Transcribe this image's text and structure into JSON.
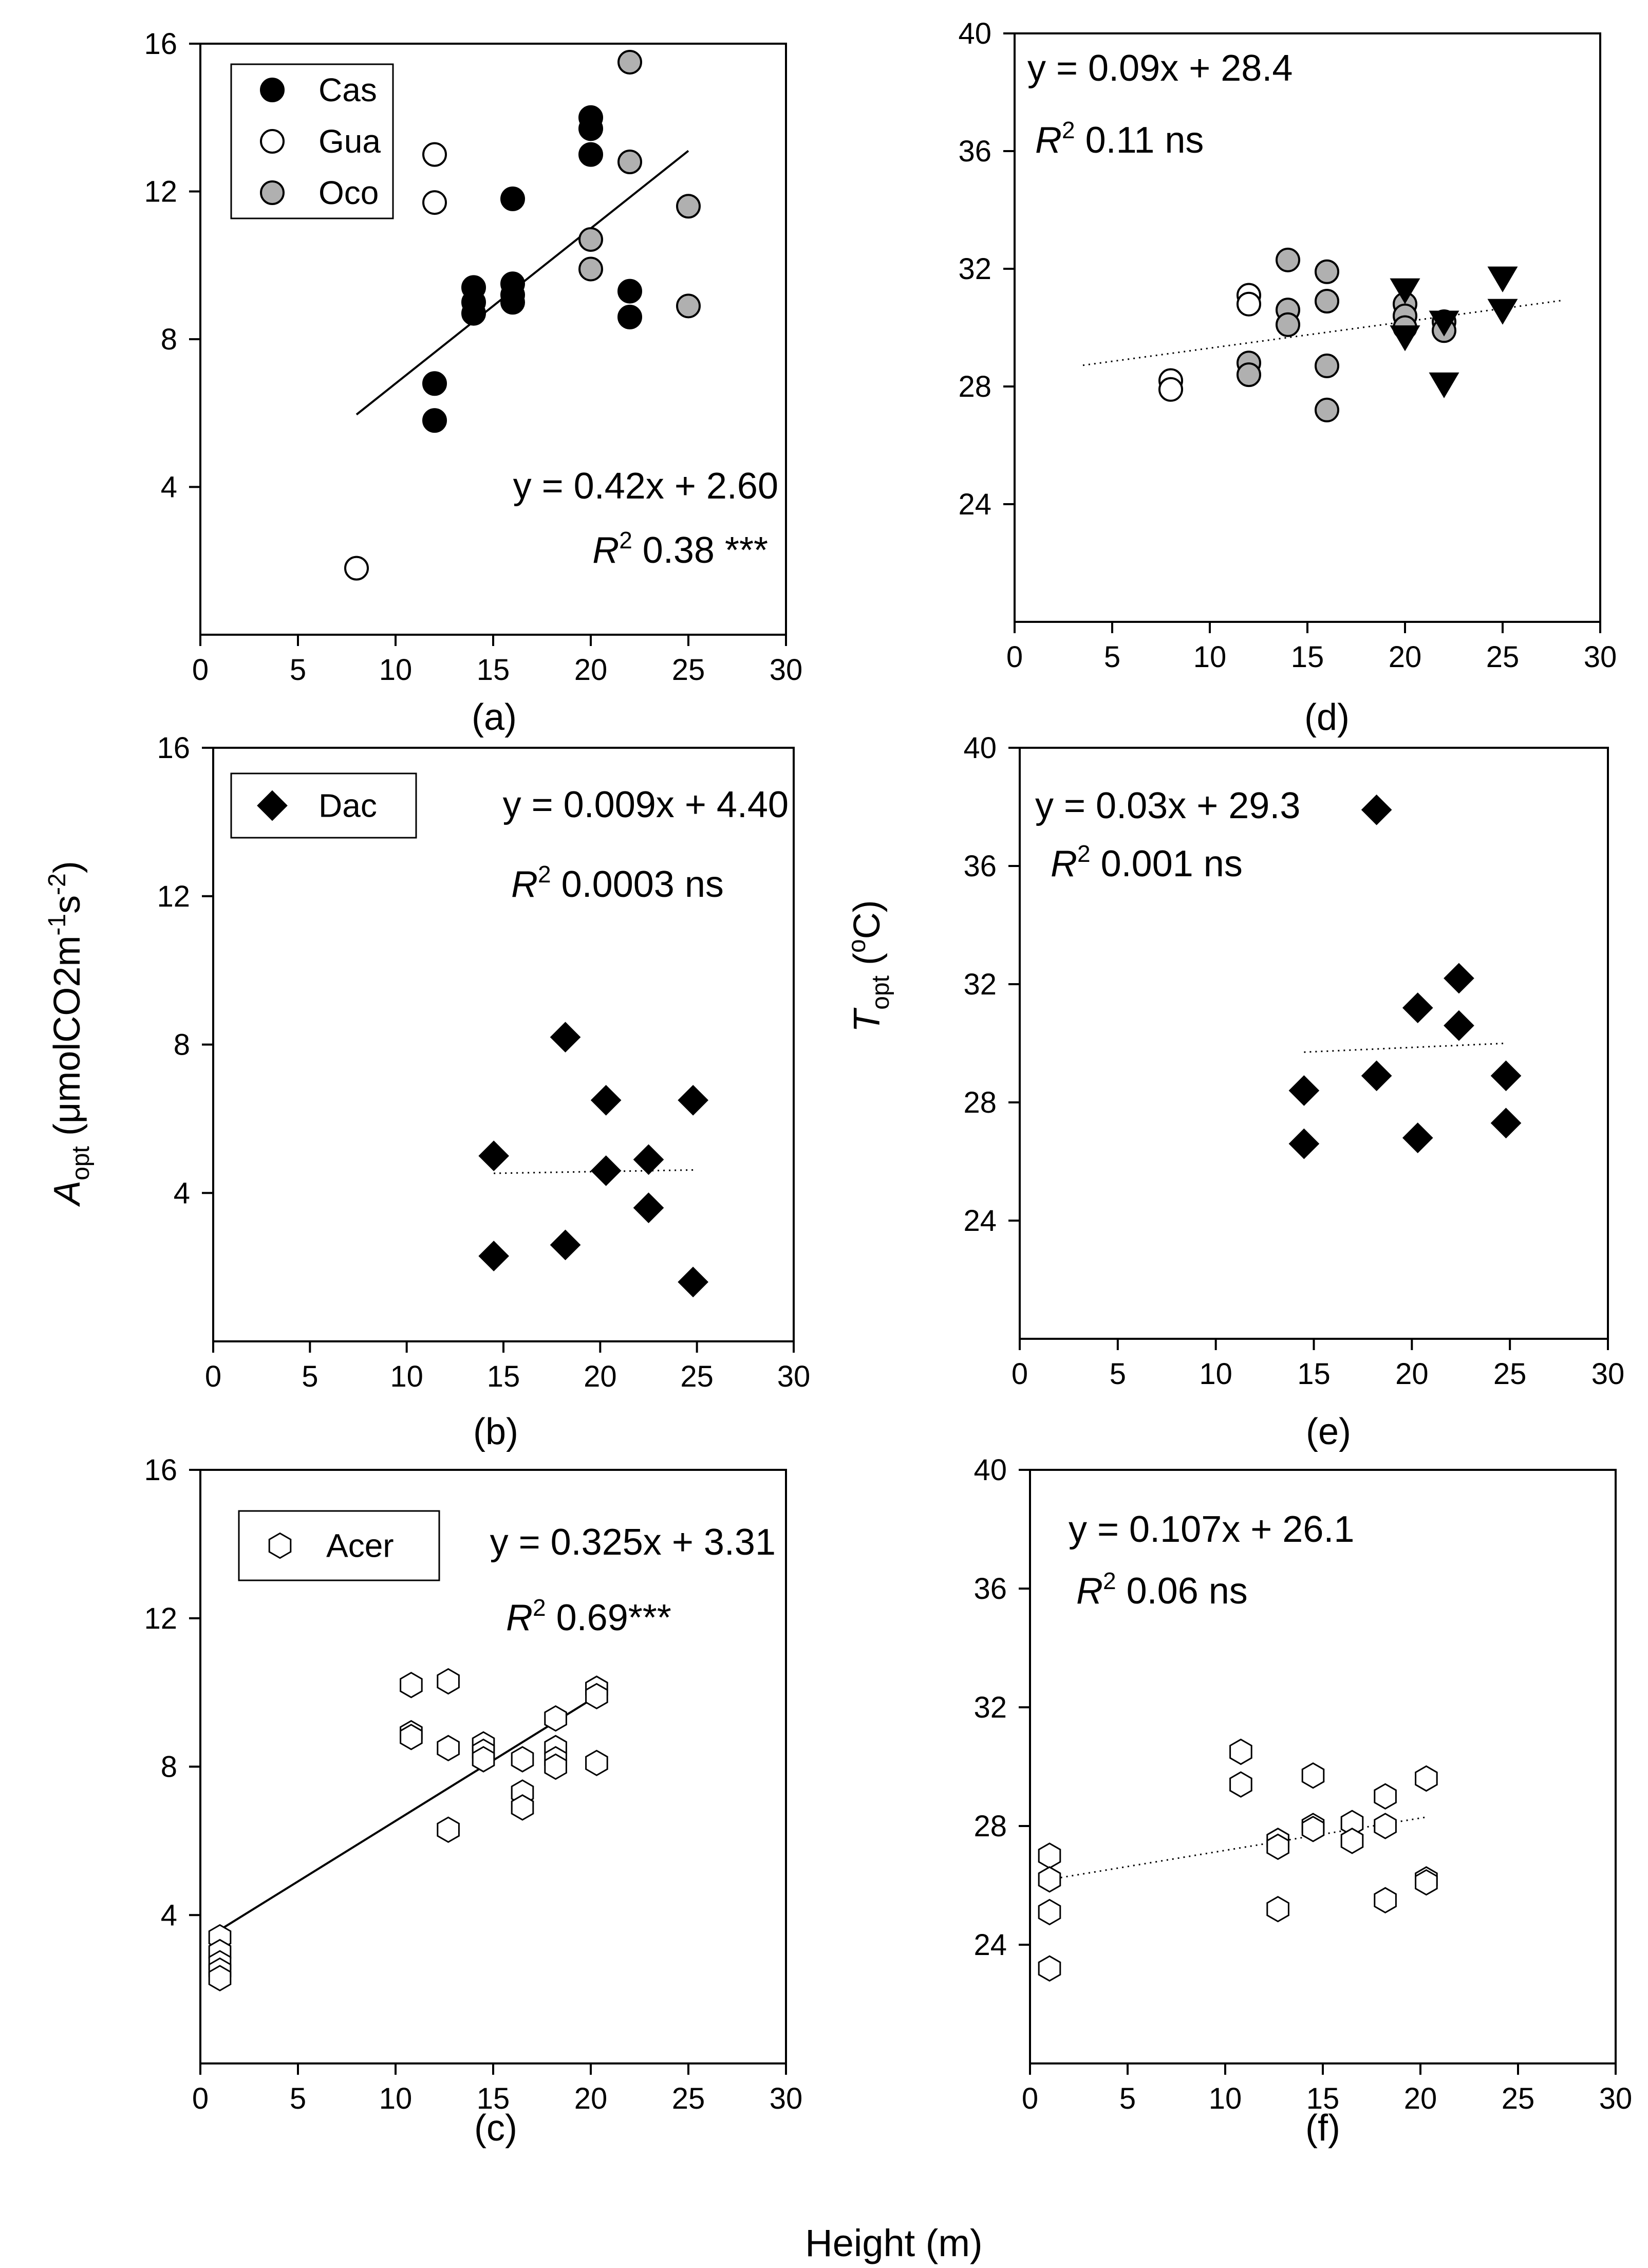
{
  "figure": {
    "xlabel": "Height (m)",
    "ylabel_left": "A",
    "ylabel_left_sub": "opt",
    "ylabel_left_units": " (μmolCO2m",
    "ylabel_left_sup1": "-1",
    "ylabel_left_mid": "s",
    "ylabel_left_sup2": "-2",
    "ylabel_left_close": ")",
    "ylabel_right": "T",
    "ylabel_right_sub": "opt",
    "ylabel_right_units1": " (",
    "ylabel_right_sup": "o",
    "ylabel_right_units2": "C)"
  },
  "chart_data": [
    {
      "id": "a",
      "type": "scatter",
      "caption": "(a)",
      "xlim": [
        0,
        30
      ],
      "ylim": [
        0,
        16
      ],
      "xticks": [
        0,
        5,
        10,
        15,
        20,
        25,
        30
      ],
      "yticks": [
        4,
        8,
        12,
        16
      ],
      "equation": "y = 0.42x + 2.60",
      "r2_label": "R",
      "r2_sup": "2",
      "r2_value": " 0.38 ***",
      "legend": [
        {
          "label": "Cas",
          "marker": "circle",
          "fill": "#000000"
        },
        {
          "label": "Gua",
          "marker": "circle",
          "fill": "#ffffff"
        },
        {
          "label": "Oco",
          "marker": "circle",
          "fill": "#b0b0b0"
        }
      ],
      "fit": {
        "style": "solid",
        "x": [
          8,
          25
        ],
        "y": [
          5.96,
          13.1
        ]
      },
      "series": [
        {
          "name": "Cas",
          "marker": "circle",
          "fill": "#000000",
          "points": [
            [
              12,
              6.8
            ],
            [
              12,
              5.8
            ],
            [
              14,
              9.4
            ],
            [
              14,
              9.0
            ],
            [
              14,
              8.7
            ],
            [
              16,
              11.8
            ],
            [
              16,
              9.5
            ],
            [
              16,
              9.2
            ],
            [
              16,
              9.0
            ],
            [
              20,
              14.0
            ],
            [
              20,
              13.7
            ],
            [
              20,
              13.0
            ],
            [
              22,
              9.3
            ],
            [
              22,
              8.6
            ]
          ]
        },
        {
          "name": "Gua",
          "marker": "circle",
          "fill": "#ffffff",
          "points": [
            [
              8,
              1.8
            ],
            [
              12,
              13.0
            ],
            [
              12,
              11.7
            ]
          ]
        },
        {
          "name": "Oco",
          "marker": "circle",
          "fill": "#b0b0b0",
          "points": [
            [
              20,
              10.7
            ],
            [
              20,
              9.9
            ],
            [
              22,
              15.5
            ],
            [
              22,
              12.8
            ],
            [
              25,
              11.6
            ],
            [
              25,
              8.9
            ]
          ]
        }
      ]
    },
    {
      "id": "b",
      "type": "scatter",
      "caption": "(b)",
      "xlim": [
        0,
        30
      ],
      "ylim": [
        0,
        16
      ],
      "xticks": [
        0,
        5,
        10,
        15,
        20,
        25,
        30
      ],
      "yticks": [
        4,
        8,
        12,
        16
      ],
      "equation": "y = 0.009x + 4.40",
      "r2_label": "R",
      "r2_sup": "2",
      "r2_value": " 0.0003 ns",
      "legend": [
        {
          "label": "Dac",
          "marker": "diamond",
          "fill": "#000000"
        }
      ],
      "fit": {
        "style": "dotted",
        "x": [
          14.5,
          24.8
        ],
        "y": [
          4.53,
          4.62
        ]
      },
      "series": [
        {
          "name": "Dac",
          "marker": "diamond",
          "fill": "#000000",
          "points": [
            [
              14.5,
              5.0
            ],
            [
              14.5,
              2.3
            ],
            [
              18.2,
              8.2
            ],
            [
              18.2,
              2.6
            ],
            [
              20.3,
              6.5
            ],
            [
              20.3,
              4.6
            ],
            [
              22.5,
              4.9
            ],
            [
              22.5,
              3.6
            ],
            [
              24.8,
              6.5
            ],
            [
              24.8,
              1.6
            ]
          ]
        }
      ]
    },
    {
      "id": "c",
      "type": "scatter",
      "caption": "(c)",
      "xlim": [
        0,
        30
      ],
      "ylim": [
        0,
        16
      ],
      "xticks": [
        0,
        5,
        10,
        15,
        20,
        25,
        30
      ],
      "yticks": [
        4,
        8,
        12,
        16
      ],
      "equation": "y = 0.325x + 3.31",
      "r2_label": "R",
      "r2_sup": "2",
      "r2_value": " 0.69***",
      "legend": [
        {
          "label": "Acer",
          "marker": "hexagon",
          "fill": "#ffffff"
        }
      ],
      "fit": {
        "style": "solid",
        "x": [
          1,
          20.3
        ],
        "y": [
          3.6,
          9.9
        ]
      },
      "series": [
        {
          "name": "Acer",
          "marker": "hexagon",
          "fill": "#ffffff",
          "points": [
            [
              1,
              3.4
            ],
            [
              1,
              3.0
            ],
            [
              1,
              2.7
            ],
            [
              1,
              2.5
            ],
            [
              1,
              2.3
            ],
            [
              10.8,
              10.2
            ],
            [
              10.8,
              8.9
            ],
            [
              10.8,
              8.8
            ],
            [
              12.7,
              10.3
            ],
            [
              12.7,
              8.5
            ],
            [
              12.7,
              6.3
            ],
            [
              14.5,
              8.6
            ],
            [
              14.5,
              8.4
            ],
            [
              14.5,
              8.2
            ],
            [
              16.5,
              8.2
            ],
            [
              16.5,
              7.3
            ],
            [
              16.5,
              6.9
            ],
            [
              18.2,
              9.3
            ],
            [
              18.2,
              8.5
            ],
            [
              18.2,
              8.2
            ],
            [
              18.2,
              8.0
            ],
            [
              20.3,
              10.1
            ],
            [
              20.3,
              9.9
            ],
            [
              20.3,
              8.1
            ]
          ]
        }
      ]
    },
    {
      "id": "d",
      "type": "scatter",
      "caption": "(d)",
      "xlim": [
        0,
        30
      ],
      "ylim": [
        20,
        40
      ],
      "xticks": [
        0,
        5,
        10,
        15,
        20,
        25,
        30
      ],
      "yticks": [
        24,
        28,
        32,
        36,
        40
      ],
      "equation": "y = 0.09x + 28.4",
      "r2_label": "R",
      "r2_sup": "2",
      "r2_value": " 0.11 ns",
      "legend": [],
      "fit": {
        "style": "dotted",
        "x": [
          3.5,
          28
        ],
        "y": [
          28.72,
          30.92
        ]
      },
      "series": [
        {
          "name": "Gua",
          "marker": "circle",
          "fill": "#ffffff",
          "points": [
            [
              8,
              28.2
            ],
            [
              8,
              27.9
            ],
            [
              12,
              31.1
            ],
            [
              12,
              30.8
            ]
          ]
        },
        {
          "name": "Oco",
          "marker": "circle",
          "fill": "#b0b0b0",
          "points": [
            [
              12,
              28.8
            ],
            [
              12,
              28.4
            ],
            [
              14,
              32.3
            ],
            [
              14,
              30.6
            ],
            [
              14,
              30.1
            ],
            [
              16,
              31.9
            ],
            [
              16,
              30.9
            ],
            [
              16,
              28.7
            ],
            [
              16,
              27.2
            ],
            [
              20,
              30.8
            ],
            [
              20,
              30.4
            ],
            [
              20,
              30.0
            ],
            [
              22,
              30.2
            ],
            [
              22,
              29.9
            ]
          ]
        },
        {
          "name": "Cas",
          "marker": "triangle-down",
          "fill": "#000000",
          "points": [
            [
              20,
              31.3
            ],
            [
              20,
              29.7
            ],
            [
              22,
              30.2
            ],
            [
              22,
              28.1
            ],
            [
              25,
              31.7
            ],
            [
              25,
              30.6
            ]
          ]
        }
      ]
    },
    {
      "id": "e",
      "type": "scatter",
      "caption": "(e)",
      "xlim": [
        0,
        30
      ],
      "ylim": [
        20,
        40
      ],
      "xticks": [
        0,
        5,
        10,
        15,
        20,
        25,
        30
      ],
      "yticks": [
        24,
        28,
        32,
        36,
        40
      ],
      "equation": "y = 0.03x + 29.3",
      "r2_label": "R",
      "r2_sup": "2",
      "r2_value": " 0.001 ns",
      "legend": [],
      "fit": {
        "style": "dotted",
        "x": [
          14.5,
          24.8
        ],
        "y": [
          29.7,
          30.0
        ]
      },
      "series": [
        {
          "name": "Dac",
          "marker": "diamond",
          "fill": "#000000",
          "points": [
            [
              14.5,
              28.4
            ],
            [
              14.5,
              26.6
            ],
            [
              18.2,
              37.9
            ],
            [
              18.2,
              28.9
            ],
            [
              20.3,
              31.2
            ],
            [
              20.3,
              26.8
            ],
            [
              22.4,
              32.2
            ],
            [
              22.4,
              30.6
            ],
            [
              24.8,
              28.9
            ],
            [
              24.8,
              27.3
            ]
          ]
        }
      ]
    },
    {
      "id": "f",
      "type": "scatter",
      "caption": "(f)",
      "xlim": [
        0,
        30
      ],
      "ylim": [
        20,
        40
      ],
      "xticks": [
        0,
        5,
        10,
        15,
        20,
        25,
        30
      ],
      "yticks": [
        24,
        28,
        32,
        36,
        40
      ],
      "equation": "y = 0.107x + 26.1",
      "r2_label": "R",
      "r2_sup": "2",
      "r2_value": " 0.06 ns",
      "legend": [],
      "fit": {
        "style": "dotted",
        "x": [
          1,
          20.3
        ],
        "y": [
          26.2,
          28.3
        ]
      },
      "series": [
        {
          "name": "Acer",
          "marker": "hexagon",
          "fill": "#ffffff",
          "points": [
            [
              1,
              27.0
            ],
            [
              1,
              26.2
            ],
            [
              1,
              25.1
            ],
            [
              1,
              23.2
            ],
            [
              10.8,
              30.5
            ],
            [
              10.8,
              29.4
            ],
            [
              12.7,
              27.5
            ],
            [
              12.7,
              27.3
            ],
            [
              12.7,
              25.2
            ],
            [
              14.5,
              29.7
            ],
            [
              14.5,
              28.0
            ],
            [
              14.5,
              27.9
            ],
            [
              16.5,
              28.1
            ],
            [
              16.5,
              27.5
            ],
            [
              18.2,
              29.0
            ],
            [
              18.2,
              28.0
            ],
            [
              18.2,
              25.5
            ],
            [
              20.3,
              29.6
            ],
            [
              20.3,
              26.2
            ],
            [
              20.3,
              26.1
            ]
          ]
        }
      ]
    }
  ]
}
